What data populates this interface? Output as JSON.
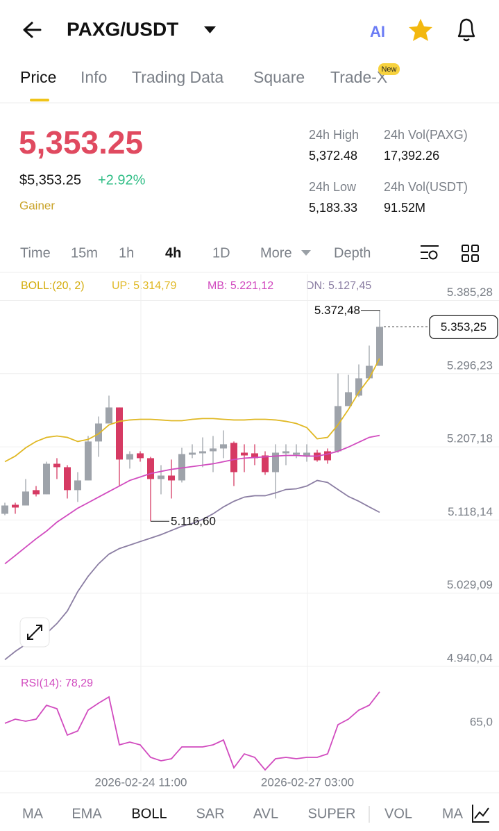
{
  "header": {
    "title": "PAXG/USDT",
    "ai_label": "AI"
  },
  "tabs": [
    "Price",
    "Info",
    "Trading Data",
    "Square",
    "Trade-X"
  ],
  "tab_badge": "New",
  "price": {
    "last": "5,353.25",
    "usd": "$5,353.25",
    "change": "+2.92%",
    "tag": "Gainer"
  },
  "stats": [
    {
      "label": "24h High",
      "value": "5,372.48"
    },
    {
      "label": "24h Vol(PAXG)",
      "value": "17,392.26"
    },
    {
      "label": "24h Low",
      "value": "5,183.33"
    },
    {
      "label": "24h Vol(USDT)",
      "value": "91.52M"
    }
  ],
  "intervals": [
    "Time",
    "15m",
    "1h",
    "4h",
    "1D",
    "More",
    "Depth"
  ],
  "chart_data": {
    "type": "candlestick",
    "categories": [
      null,
      null,
      null,
      null,
      null,
      null,
      null,
      null,
      null,
      null,
      null,
      null,
      null,
      "2026-02-24 11:00",
      null,
      null,
      null,
      null,
      null,
      null,
      null,
      null,
      null,
      null,
      null,
      null,
      null,
      null,
      null,
      "2026-02-27 03:00",
      null,
      null,
      null,
      null,
      null,
      null,
      null
    ],
    "candles": {
      "open": [
        5125.7,
        5136.7,
        5135.8,
        5154.5,
        5149.4,
        5186.6,
        5182.4,
        5154.5,
        5166.3,
        5213.7,
        5235.6,
        5255.1,
        5191.7,
        5199.3,
        5193.4,
        5168.0,
        5172.2,
        5166.3,
        5197.6,
        5199.3,
        5201.8,
        5205.2,
        5212.0,
        5200.1,
        5199.3,
        5196.7,
        5176.4,
        5199.3,
        5197.6,
        5196.7,
        5200.1,
        5201.8,
        5201.8,
        5256.8,
        5269.5,
        5290.6,
        5305.8
      ],
      "high": [
        5139.2,
        5139.2,
        5168.0,
        5159.5,
        5189.1,
        5193.4,
        5184.9,
        5176.4,
        5220.4,
        5244.1,
        5269.5,
        5255.1,
        5201.8,
        5201.8,
        5195.0,
        5184.9,
        5191.7,
        5206.0,
        5210.3,
        5218.7,
        5220.4,
        5227.2,
        5213.7,
        5210.3,
        5210.3,
        5201.8,
        5210.3,
        5210.3,
        5210.3,
        5210.3,
        5203.5,
        5205.2,
        5296.5,
        5294.8,
        5307.5,
        5330.4,
        5372.48
      ],
      "low": [
        5124.0,
        5125.7,
        5135.8,
        5146.8,
        5149.4,
        5168.0,
        5144.3,
        5140.1,
        5166.3,
        5195.0,
        5235.6,
        5159.5,
        5180.7,
        5189.1,
        5116.6,
        5149.4,
        5144.3,
        5163.8,
        5193.4,
        5182.4,
        5176.4,
        5193.4,
        5159.5,
        5176.4,
        5184.9,
        5173.1,
        5144.3,
        5184.9,
        5193.4,
        5189.1,
        5189.1,
        5186.6,
        5200.1,
        5256.8,
        5267.8,
        5288.9,
        5305.8
      ],
      "close": [
        5135.8,
        5133.3,
        5152.8,
        5149.4,
        5186.6,
        5182.4,
        5154.5,
        5166.3,
        5213.7,
        5235.6,
        5255.1,
        5191.7,
        5198.4,
        5193.4,
        5168.0,
        5172.2,
        5166.3,
        5198.4,
        5200.1,
        5201.8,
        5205.2,
        5210.3,
        5176.4,
        5196.7,
        5193.4,
        5176.4,
        5200.1,
        5201.8,
        5200.1,
        5200.1,
        5190.8,
        5190.8,
        5256.8,
        5273.7,
        5290.6,
        5305.8,
        5353.25
      ]
    },
    "up_color": "#9ea3aa",
    "down_color": "#d63a63",
    "indicator": "BOLL:(20, 2)",
    "indicator_color": "#d4ac0d",
    "series": [
      {
        "name": "UP: 5.314,79",
        "color": "#e0b824",
        "values": [
          5189.1,
          5195.9,
          5206.0,
          5213.7,
          5218.7,
          5220.4,
          5218.7,
          5213.7,
          5216.2,
          5223.0,
          5233.9,
          5238.2,
          5239.9,
          5240.7,
          5240.7,
          5239.9,
          5239.0,
          5239.0,
          5240.7,
          5241.6,
          5241.6,
          5240.7,
          5239.9,
          5239.9,
          5240.7,
          5240.7,
          5239.9,
          5238.2,
          5235.6,
          5230.6,
          5217.0,
          5218.7,
          5233.9,
          5252.6,
          5273.7,
          5290.6,
          5314.79
        ]
      },
      {
        "name": "MB: 5.221,12",
        "color": "#d14bbf",
        "values": [
          5064.8,
          5074.9,
          5085.1,
          5095.3,
          5104.6,
          5115.5,
          5124.0,
          5132.5,
          5139.2,
          5146.0,
          5152.8,
          5159.5,
          5166.3,
          5170.5,
          5174.7,
          5177.3,
          5179.8,
          5181.5,
          5183.2,
          5184.9,
          5186.6,
          5189.1,
          5191.7,
          5193.4,
          5194.2,
          5195.0,
          5195.9,
          5196.7,
          5196.7,
          5195.9,
          5195.9,
          5198.4,
          5201.8,
          5206.9,
          5212.8,
          5218.7,
          5221.12
        ]
      },
      {
        "name": "DN: 5.127,45",
        "color": "#8b7ea3",
        "values": [
          4948.1,
          4958.2,
          4966.7,
          4971.8,
          4980.2,
          4992.1,
          5007.3,
          5031.0,
          5049.6,
          5064.8,
          5076.6,
          5083.4,
          5087.6,
          5091.9,
          5096.1,
          5100.3,
          5105.4,
          5110.5,
          5113.9,
          5118.9,
          5125.7,
          5134.1,
          5140.9,
          5146.0,
          5147.7,
          5147.7,
          5151.1,
          5155.3,
          5156.1,
          5159.5,
          5166.3,
          5163.8,
          5155.3,
          5146.8,
          5140.9,
          5134.1,
          5127.45
        ]
      }
    ],
    "ylim": [
      4940.04,
      5417.0
    ],
    "yticks": [
      {
        "value": 5385.28,
        "label": "5.385,28"
      },
      {
        "value": 5296.23,
        "label": "5.296,23"
      },
      {
        "value": 5207.18,
        "label": "5.207,18"
      },
      {
        "value": 5118.14,
        "label": "5.118,14"
      },
      {
        "value": 5029.09,
        "label": "5.029,09"
      },
      {
        "value": 4940.04,
        "label": "4.940,04"
      }
    ],
    "grid": true,
    "last_price": {
      "value": 5353.25,
      "label": "5.353,25"
    },
    "high_marker": {
      "value": 5372.48,
      "label": "5.372,48"
    },
    "low_marker": {
      "value": 5116.6,
      "label": "5.116,60"
    },
    "rsi": {
      "name": "RSI(14): 78,29",
      "color": "#d14bbf",
      "values": [
        64.7,
        66.5,
        65.6,
        66.5,
        72.5,
        71.0,
        59.6,
        61.4,
        70.4,
        73.4,
        76.1,
        55.4,
        56.6,
        55.4,
        50.0,
        48.5,
        49.4,
        54.5,
        54.5,
        54.5,
        55.4,
        57.5,
        45.5,
        51.5,
        50.0,
        44.6,
        49.4,
        50.0,
        49.4,
        50.0,
        50.0,
        51.5,
        64.1,
        66.5,
        70.4,
        72.5,
        78.29
      ],
      "ylim": [
        44,
        89
      ],
      "yticks": [
        {
          "value": 65,
          "label": "65,0"
        }
      ]
    }
  },
  "indicator_tabs": [
    "MA",
    "EMA",
    "BOLL",
    "SAR",
    "AVL",
    "SUPER",
    "VOL",
    "MA"
  ]
}
